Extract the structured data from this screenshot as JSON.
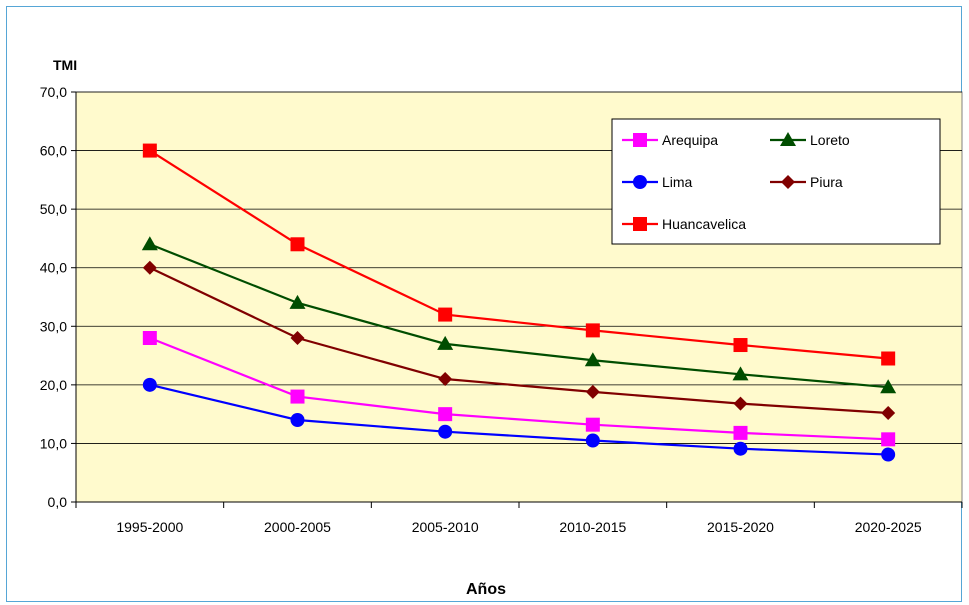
{
  "chart_data": {
    "type": "line",
    "title": "",
    "ylabel": "TMI",
    "xlabel": "Años",
    "ylim": [
      0,
      70
    ],
    "yticks": [
      "0,0",
      "10,0",
      "20,0",
      "30,0",
      "40,0",
      "50,0",
      "60,0",
      "70,0"
    ],
    "ytick_values": [
      0,
      10,
      20,
      30,
      40,
      50,
      60,
      70
    ],
    "categories": [
      "1995-2000",
      "2000-2005",
      "2005-2010",
      "2010-2015",
      "2015-2020",
      "2020-2025"
    ],
    "grid": "horizontal",
    "legend_position": "top-right",
    "plot_background": "#fffacd",
    "series": [
      {
        "name": "Arequipa",
        "color": "#ff00ff",
        "marker": "square",
        "values": [
          28.0,
          18.0,
          15.0,
          13.2,
          11.8,
          10.7
        ]
      },
      {
        "name": "Loreto",
        "color": "#004d00",
        "marker": "triangle",
        "values": [
          44.0,
          34.0,
          27.0,
          24.2,
          21.8,
          19.6
        ]
      },
      {
        "name": "Lima",
        "color": "#0000ff",
        "marker": "circle",
        "values": [
          20.0,
          14.0,
          12.0,
          10.5,
          9.1,
          8.1
        ]
      },
      {
        "name": "Piura",
        "color": "#800000",
        "marker": "diamond",
        "values": [
          40.0,
          28.0,
          21.0,
          18.8,
          16.8,
          15.2
        ]
      },
      {
        "name": "Huancavelica",
        "color": "#ff0000",
        "marker": "square",
        "values": [
          60.0,
          44.0,
          32.0,
          29.3,
          26.8,
          24.5
        ]
      }
    ]
  }
}
